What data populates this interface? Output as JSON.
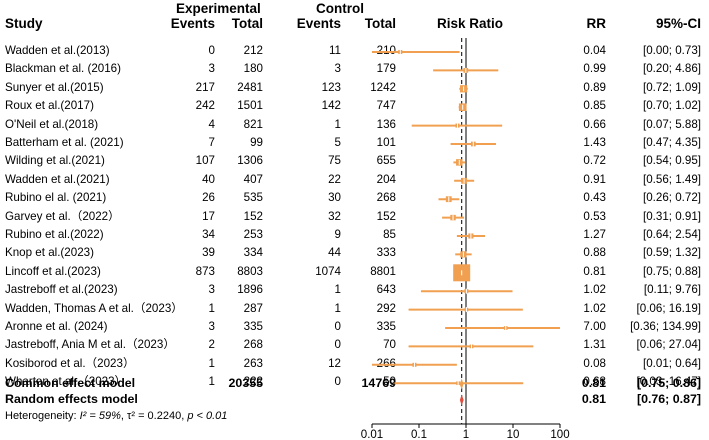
{
  "headers": {
    "study": "Study",
    "experimental": "Experimental",
    "control": "Control",
    "events": "Events",
    "total": "Total",
    "risk_ratio": "Risk Ratio",
    "rr": "RR",
    "ci": "95%-CI"
  },
  "studies": [
    {
      "name": "Wadden et al.(2013)",
      "e_events": "0",
      "e_total": "212",
      "c_events": "11",
      "c_total": "210",
      "rr": "0.04",
      "ci": "[0.00;  0.73]"
    },
    {
      "name": "Blackman et al. (2016)",
      "e_events": "3",
      "e_total": "180",
      "c_events": "3",
      "c_total": "179",
      "rr": "0.99",
      "ci": "[0.20;  4.86]"
    },
    {
      "name": "Sunyer et al.(2015)",
      "e_events": "217",
      "e_total": "2481",
      "c_events": "123",
      "c_total": "1242",
      "rr": "0.89",
      "ci": "[0.72;  1.09]"
    },
    {
      "name": "Roux et al.(2017)",
      "e_events": "242",
      "e_total": "1501",
      "c_events": "142",
      "c_total": "747",
      "rr": "0.85",
      "ci": "[0.70;  1.02]"
    },
    {
      "name": "O'Neil et al.(2018)",
      "e_events": "4",
      "e_total": "821",
      "c_events": "1",
      "c_total": "136",
      "rr": "0.66",
      "ci": "[0.07;  5.88]"
    },
    {
      "name": "Batterham et al. (2021)",
      "e_events": "7",
      "e_total": "99",
      "c_events": "5",
      "c_total": "101",
      "rr": "1.43",
      "ci": "[0.47;  4.35]"
    },
    {
      "name": "Wilding et al.(2021)",
      "e_events": "107",
      "e_total": "1306",
      "c_events": "75",
      "c_total": "655",
      "rr": "0.72",
      "ci": "[0.54;  0.95]"
    },
    {
      "name": "Wadden et al.(2021)",
      "e_events": "40",
      "e_total": "407",
      "c_events": "22",
      "c_total": "204",
      "rr": "0.91",
      "ci": "[0.56;  1.49]"
    },
    {
      "name": "Rubino el al. (2021)",
      "e_events": "26",
      "e_total": "535",
      "c_events": "30",
      "c_total": "268",
      "rr": "0.43",
      "ci": "[0.26;  0.72]"
    },
    {
      "name": "Garvey et al.（2022）",
      "e_events": "17",
      "e_total": "152",
      "c_events": "32",
      "c_total": "152",
      "rr": "0.53",
      "ci": "[0.31;  0.91]"
    },
    {
      "name": "Rubino et al.(2022)",
      "e_events": "34",
      "e_total": "253",
      "c_events": "9",
      "c_total": "85",
      "rr": "1.27",
      "ci": "[0.64;  2.54]"
    },
    {
      "name": "Knop et al.(2023)",
      "e_events": "39",
      "e_total": "334",
      "c_events": "44",
      "c_total": "333",
      "rr": "0.88",
      "ci": "[0.59;  1.32]"
    },
    {
      "name": "Lincoff et al.(2023)",
      "e_events": "873",
      "e_total": "8803",
      "c_events": "1074",
      "c_total": "8801",
      "rr": "0.81",
      "ci": "[0.75;  0.88]"
    },
    {
      "name": "Jastreboff et al.(2023)",
      "e_events": "3",
      "e_total": "1896",
      "c_events": "1",
      "c_total": "643",
      "rr": "1.02",
      "ci": "[0.11;  9.76]"
    },
    {
      "name": "Wadden, Thomas A et al.（2023）",
      "e_events": "1",
      "e_total": "287",
      "c_events": "1",
      "c_total": "292",
      "rr": "1.02",
      "ci": "[0.06; 16.19]"
    },
    {
      "name": "Aronne et al. (2024)",
      "e_events": "3",
      "e_total": "335",
      "c_events": "0",
      "c_total": "335",
      "rr": "7.00",
      "ci": "[0.36; 134.99]"
    },
    {
      "name": "Jastreboff, Ania M et al.（2023）",
      "e_events": "2",
      "e_total": "268",
      "c_events": "0",
      "c_total": "70",
      "rr": "1.31",
      "ci": "[0.06; 27.04]"
    },
    {
      "name": "Kosiborod et al.（2023）",
      "e_events": "1",
      "e_total": "263",
      "c_events": "12",
      "c_total": "266",
      "rr": "0.08",
      "ci": "[0.01;  0.64]"
    },
    {
      "name": "Wharton et al.（2023）",
      "e_events": "1",
      "e_total": "222",
      "c_events": "0",
      "c_total": "50",
      "rr": "0.68",
      "ci": "[0.03; 16.47]"
    }
  ],
  "common": {
    "label": "Common effect model",
    "e_total": "20355",
    "c_total": "14769",
    "rr": "0.81",
    "ci": "[0.75;  0.86]"
  },
  "random": {
    "label": "Random effects model",
    "rr": "0.81",
    "ci": "[0.76;  0.87]"
  },
  "heterogeneity": {
    "prefix": "Heterogeneity:",
    "i2": "I² = 59%",
    "tau2": "τ² = 0.2240",
    "p": "p < 0.01"
  },
  "chart_data": {
    "type": "forest",
    "x_scale": "log",
    "xlim": [
      0.01,
      100
    ],
    "xticks": [
      "0.01",
      "0.1",
      "1",
      "10",
      "100"
    ],
    "reference_line": 1,
    "common_effect_line": 0.81,
    "colors": {
      "study": "#f0a050",
      "summary_random": "#e05040",
      "summary_common": "#f0a050",
      "line": "#000000"
    },
    "studies": [
      {
        "rr": 0.04,
        "lo": 0.0,
        "hi": 0.73,
        "weight": 0.3
      },
      {
        "rr": 0.99,
        "lo": 0.2,
        "hi": 4.86,
        "weight": 0.5
      },
      {
        "rr": 0.89,
        "lo": 0.72,
        "hi": 1.09,
        "weight": 1.2
      },
      {
        "rr": 0.85,
        "lo": 0.7,
        "hi": 1.02,
        "weight": 1.3
      },
      {
        "rr": 0.66,
        "lo": 0.07,
        "hi": 5.88,
        "weight": 0.3
      },
      {
        "rr": 1.43,
        "lo": 0.47,
        "hi": 4.35,
        "weight": 0.5
      },
      {
        "rr": 0.72,
        "lo": 0.54,
        "hi": 0.95,
        "weight": 1.0
      },
      {
        "rr": 0.91,
        "lo": 0.56,
        "hi": 1.49,
        "weight": 0.8
      },
      {
        "rr": 0.43,
        "lo": 0.26,
        "hi": 0.72,
        "weight": 0.8
      },
      {
        "rr": 0.53,
        "lo": 0.31,
        "hi": 0.91,
        "weight": 0.7
      },
      {
        "rr": 1.27,
        "lo": 0.64,
        "hi": 2.54,
        "weight": 0.6
      },
      {
        "rr": 0.88,
        "lo": 0.59,
        "hi": 1.32,
        "weight": 0.9
      },
      {
        "rr": 0.81,
        "lo": 0.75,
        "hi": 0.88,
        "weight": 4.0
      },
      {
        "rr": 1.02,
        "lo": 0.11,
        "hi": 9.76,
        "weight": 0.3
      },
      {
        "rr": 1.02,
        "lo": 0.06,
        "hi": 16.19,
        "weight": 0.2
      },
      {
        "rr": 7.0,
        "lo": 0.36,
        "hi": 134.99,
        "weight": 0.2
      },
      {
        "rr": 1.31,
        "lo": 0.06,
        "hi": 27.04,
        "weight": 0.2
      },
      {
        "rr": 0.08,
        "lo": 0.01,
        "hi": 0.64,
        "weight": 0.3
      },
      {
        "rr": 0.68,
        "lo": 0.03,
        "hi": 16.47,
        "weight": 0.2
      }
    ],
    "common": {
      "rr": 0.81,
      "lo": 0.75,
      "hi": 0.86
    },
    "random": {
      "rr": 0.81,
      "lo": 0.76,
      "hi": 0.87
    }
  }
}
